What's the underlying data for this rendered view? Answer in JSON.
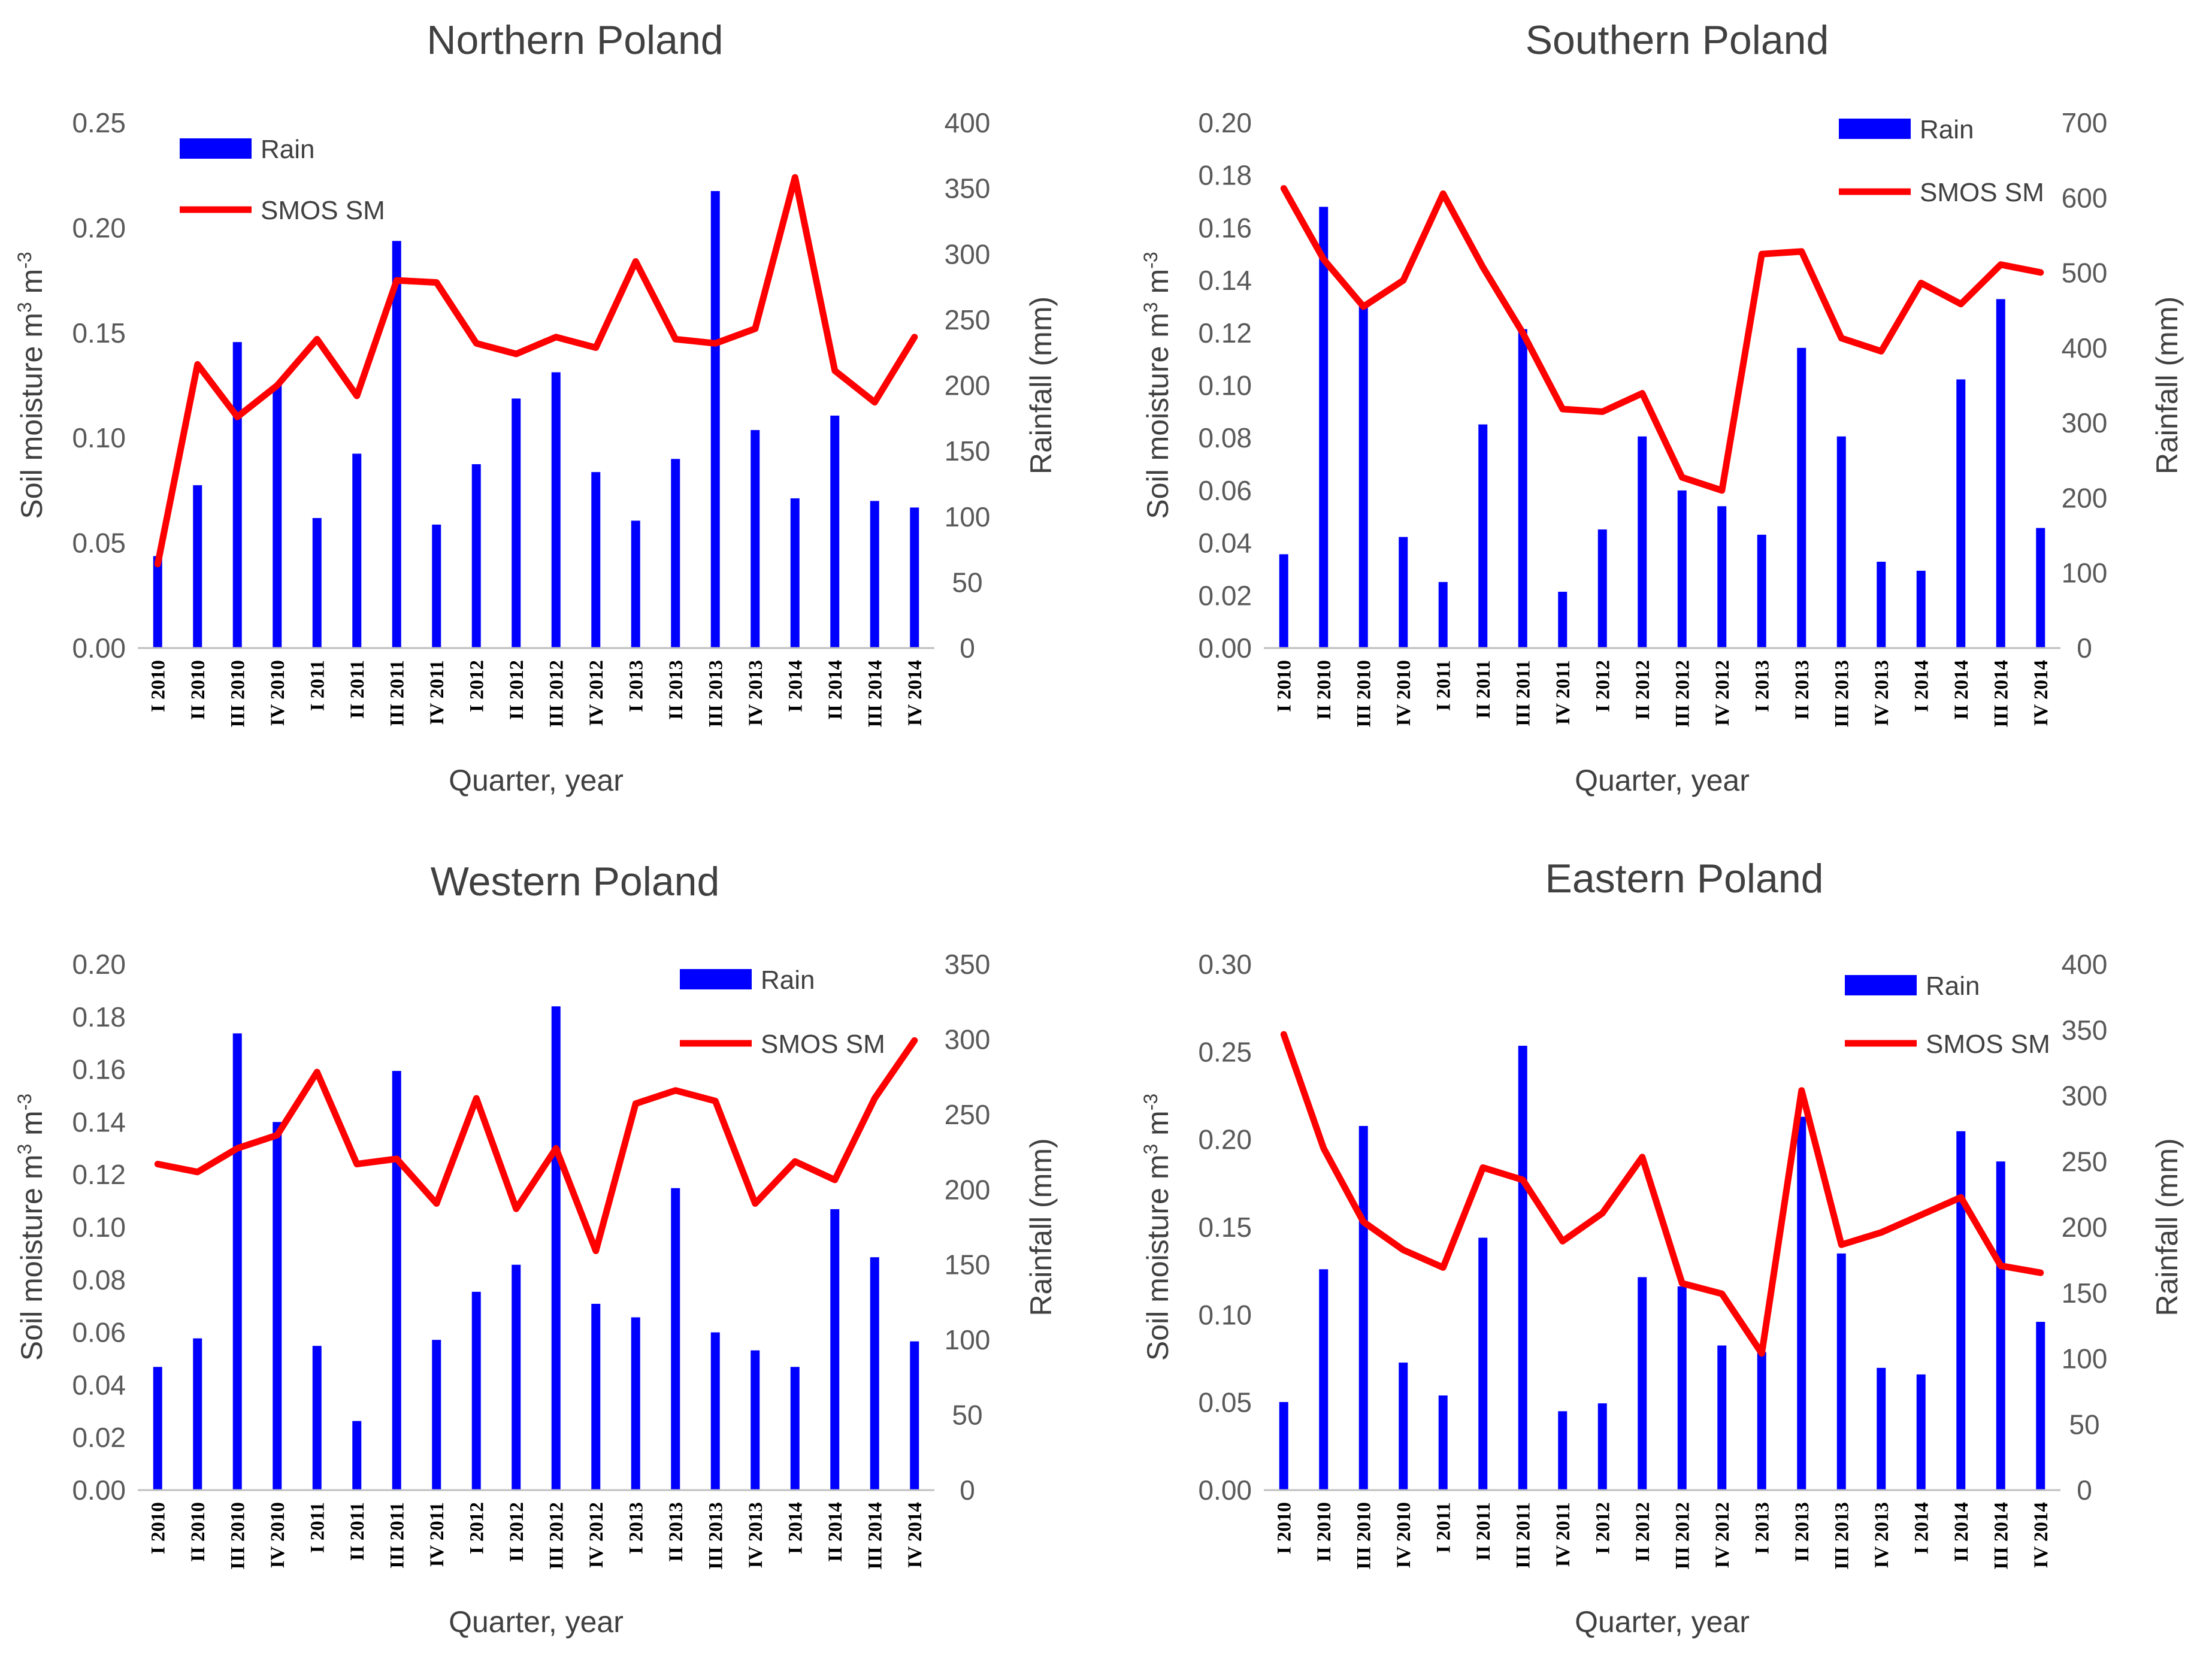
{
  "chart_data": [
    {
      "type": "bar+line",
      "title": "Northern Poland",
      "xlabel": "Quarter, year",
      "ylabel_left": "Soil moisture m",
      "ylabel_right": "Rainfall (mm)",
      "ylim_left": [
        0,
        0.25
      ],
      "yticks_left": [
        "0.00",
        "0.05",
        "0.10",
        "0.15",
        "0.20",
        "0.25"
      ],
      "ylim_right": [
        0,
        400
      ],
      "yticks_right": [
        "0",
        "50",
        "100",
        "150",
        "200",
        "250",
        "300",
        "350",
        "400"
      ],
      "categories": [
        "I 2010",
        "II 2010",
        "III 2010",
        "IV 2010",
        "I 2011",
        "II 2011",
        "III 2011",
        "IV 2011",
        "I 2012",
        "II 2012",
        "III 2012",
        "IV 2012",
        "I 2013",
        "II 2013",
        "III 2013",
        "IV 2013",
        "I 2014",
        "II 2014",
        "III 2014",
        "IV 2014"
      ],
      "legend": {
        "position": "top-left",
        "rain": "Rain",
        "sm": "SMOS SM"
      },
      "series": [
        {
          "name": "Rain",
          "axis": "right",
          "type": "bar",
          "color": "#0000ff",
          "values": [
            70,
            124,
            233,
            200,
            99,
            148,
            310,
            94,
            140,
            190,
            210,
            134,
            97,
            144,
            348,
            166,
            114,
            177,
            112,
            107
          ]
        },
        {
          "name": "SMOS SM",
          "axis": "left",
          "type": "line",
          "color": "#ff0000",
          "values": [
            0.04,
            0.135,
            0.11,
            0.125,
            0.147,
            0.12,
            0.175,
            0.174,
            0.145,
            0.14,
            0.148,
            0.143,
            0.184,
            0.147,
            0.145,
            0.152,
            0.224,
            0.132,
            0.117,
            0.148
          ]
        }
      ]
    },
    {
      "type": "bar+line",
      "title": "Southern Poland",
      "xlabel": "Quarter, year",
      "ylabel_left": "Soil moisture m",
      "ylabel_right": "Rainfall (mm)",
      "ylim_left": [
        0,
        0.2
      ],
      "yticks_left": [
        "0.00",
        "0.02",
        "0.04",
        "0.06",
        "0.08",
        "0.10",
        "0.12",
        "0.14",
        "0.16",
        "0.18",
        "0.20"
      ],
      "ylim_right": [
        0,
        700
      ],
      "yticks_right": [
        "0",
        "100",
        "200",
        "300",
        "400",
        "500",
        "600",
        "700"
      ],
      "categories": [
        "I 2010",
        "II 2010",
        "III 2010",
        "IV 2010",
        "I 2011",
        "II 2011",
        "III 2011",
        "IV 2011",
        "I 2012",
        "II 2012",
        "III 2012",
        "IV 2012",
        "I 2013",
        "II 2013",
        "III 2013",
        "IV 2013",
        "I 2014",
        "II 2014",
        "III 2014",
        "IV 2014"
      ],
      "legend": {
        "position": "top-right",
        "rain": "Rain",
        "sm": "SMOS SM"
      },
      "series": [
        {
          "name": "Rain",
          "axis": "right",
          "type": "bar",
          "color": "#0000ff",
          "values": [
            125,
            588,
            460,
            148,
            88,
            298,
            425,
            75,
            158,
            282,
            210,
            189,
            151,
            400,
            282,
            115,
            103,
            358,
            465,
            160
          ]
        },
        {
          "name": "SMOS SM",
          "axis": "left",
          "type": "line",
          "color": "#ff0000",
          "values": [
            0.175,
            0.148,
            0.13,
            0.14,
            0.173,
            0.145,
            0.12,
            0.091,
            0.09,
            0.097,
            0.065,
            0.06,
            0.15,
            0.151,
            0.118,
            0.113,
            0.139,
            0.131,
            0.146,
            0.143
          ]
        }
      ]
    },
    {
      "type": "bar+line",
      "title": "Western Poland",
      "xlabel": "Quarter, year",
      "ylabel_left": "Soil moisture m",
      "ylabel_right": "Rainfall (mm)",
      "ylim_left": [
        0,
        0.2
      ],
      "yticks_left": [
        "0.00",
        "0.02",
        "0.04",
        "0.06",
        "0.08",
        "0.10",
        "0.12",
        "0.14",
        "0.16",
        "0.18",
        "0.20"
      ],
      "ylim_right": [
        0,
        350
      ],
      "yticks_right": [
        "0",
        "50",
        "100",
        "150",
        "200",
        "250",
        "300",
        "350"
      ],
      "categories": [
        "I 2010",
        "II 2010",
        "III 2010",
        "IV 2010",
        "I 2011",
        "II 2011",
        "III 2011",
        "IV 2011",
        "I 2012",
        "II 2012",
        "III 2012",
        "IV 2012",
        "I 2013",
        "II 2013",
        "III 2013",
        "IV 2013",
        "I 2014",
        "II 2014",
        "III 2014",
        "IV 2014"
      ],
      "legend": {
        "position": "top-right",
        "rain": "Rain",
        "sm": "SMOS SM"
      },
      "series": [
        {
          "name": "Rain",
          "axis": "right",
          "type": "bar",
          "color": "#0000ff",
          "values": [
            82,
            101,
            304,
            245,
            96,
            46,
            279,
            100,
            132,
            150,
            322,
            124,
            115,
            201,
            105,
            93,
            82,
            187,
            155,
            99
          ]
        },
        {
          "name": "SMOS SM",
          "axis": "left",
          "type": "line",
          "color": "#ff0000",
          "values": [
            0.124,
            0.121,
            0.13,
            0.135,
            0.159,
            0.124,
            0.126,
            0.109,
            0.149,
            0.107,
            0.13,
            0.091,
            0.147,
            0.152,
            0.148,
            0.109,
            0.125,
            0.118,
            0.149,
            0.171
          ]
        }
      ]
    },
    {
      "type": "bar+line",
      "title": "Eastern Poland",
      "xlabel": "Quarter, year",
      "ylabel_left": "Soil moisture m",
      "ylabel_right": "Rainfall (mm)",
      "ylim_left": [
        0,
        0.3
      ],
      "yticks_left": [
        "0.00",
        "0.05",
        "0.10",
        "0.15",
        "0.20",
        "0.25",
        "0.30"
      ],
      "ylim_right": [
        0,
        400
      ],
      "yticks_right": [
        "0",
        "50",
        "100",
        "150",
        "200",
        "250",
        "300",
        "350",
        "400"
      ],
      "categories": [
        "I 2010",
        "II 2010",
        "III 2010",
        "IV 2010",
        "I 2011",
        "II 2011",
        "III 2011",
        "IV 2011",
        "I 2012",
        "II 2012",
        "III 2012",
        "IV 2012",
        "I 2013",
        "II 2013",
        "III 2013",
        "IV 2013",
        "I 2014",
        "II 2014",
        "III 2014",
        "IV 2014"
      ],
      "legend": {
        "position": "top-right",
        "rain": "Rain",
        "sm": "SMOS SM"
      },
      "series": [
        {
          "name": "Rain",
          "axis": "right",
          "type": "bar",
          "color": "#0000ff",
          "values": [
            67,
            168,
            277,
            97,
            72,
            192,
            338,
            60,
            66,
            162,
            155,
            110,
            105,
            284,
            180,
            93,
            88,
            273,
            250,
            128
          ]
        },
        {
          "name": "SMOS SM",
          "axis": "left",
          "type": "line",
          "color": "#ff0000",
          "values": [
            0.26,
            0.195,
            0.153,
            0.137,
            0.127,
            0.184,
            0.177,
            0.142,
            0.158,
            0.19,
            0.118,
            0.112,
            0.078,
            0.228,
            0.14,
            0.147,
            0.157,
            0.167,
            0.128,
            0.124
          ]
        }
      ]
    }
  ]
}
